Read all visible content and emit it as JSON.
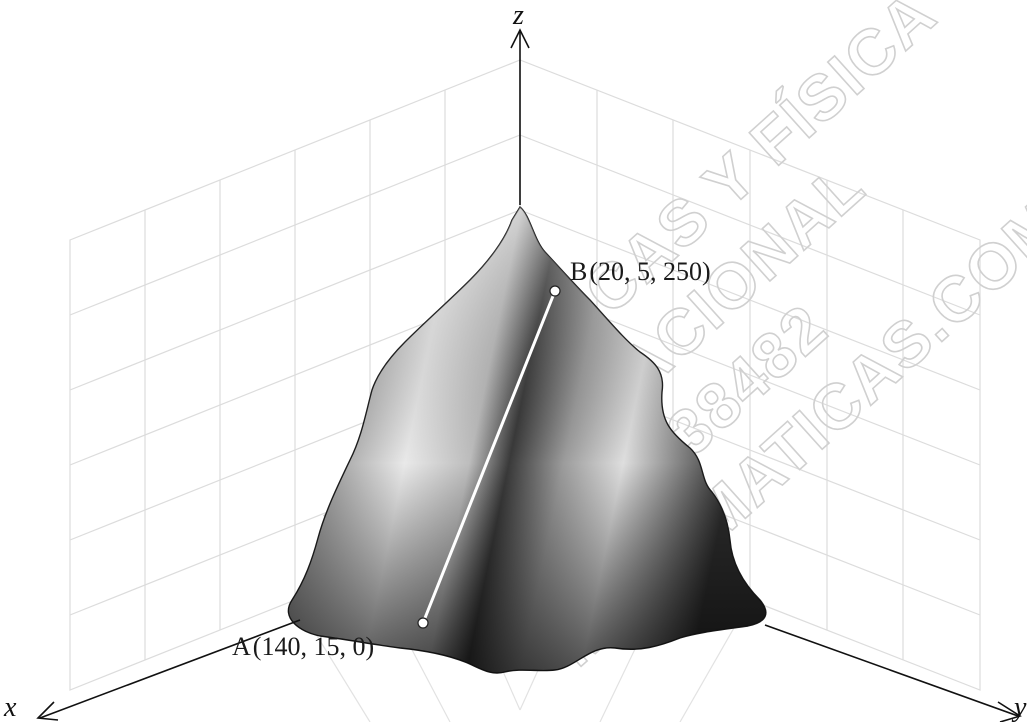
{
  "axes": {
    "x": "x",
    "y": "y",
    "z": "z"
  },
  "points": {
    "A": {
      "name": "A",
      "coords": "(140,  15,  0)"
    },
    "B": {
      "name": "B",
      "coords": "(20,  5,  250)"
    }
  },
  "watermark": {
    "lines": [
      "MATEMÁTICAS Y FÍSICA",
      "INTERNACIONAL",
      "51976438482",
      "MATEMATICAS.COM"
    ]
  },
  "colors": {
    "surface_light": "#f4f4f4",
    "surface_dark": "#2a2a2a",
    "grid": "#dcdcdc",
    "segment": "#ffffff"
  },
  "icons": {
    "axis_arrow": "open-chevron-arrowhead",
    "point_marker": "white-dot"
  }
}
